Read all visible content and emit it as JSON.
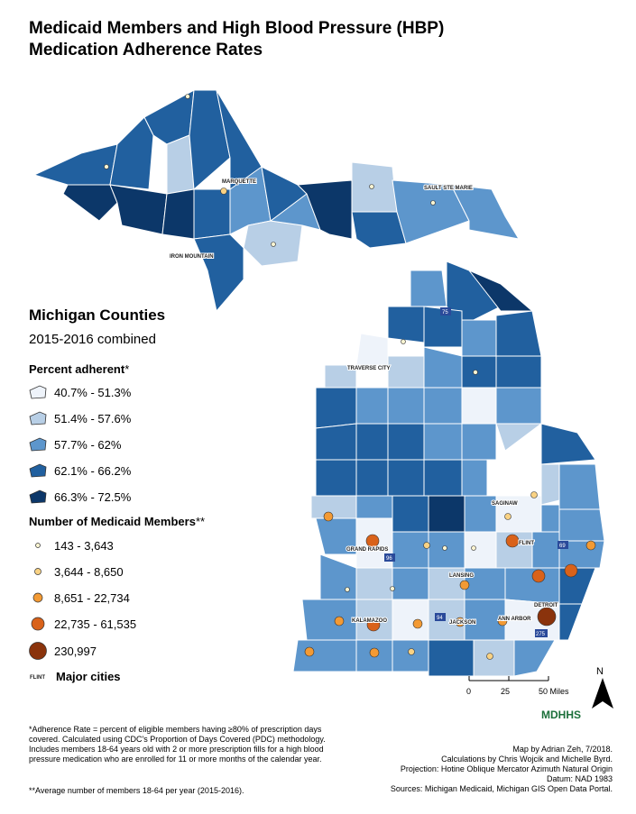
{
  "title_lines": [
    "Medicaid Members and High Blood Pressure (HBP)",
    "Medication Adherence Rates"
  ],
  "legend": {
    "heading": "Michigan Counties",
    "subheading": "2015-2016 combined",
    "adherence_title": "Percent adherent",
    "adherence_classes": [
      {
        "label": "40.7% - 51.3%",
        "color": "#eef3fa"
      },
      {
        "label": "51.4% - 57.6%",
        "color": "#b8cfe6"
      },
      {
        "label": "57.7% - 62%",
        "color": "#5d96cc"
      },
      {
        "label": "62.1% - 66.2%",
        "color": "#21609f"
      },
      {
        "label": "66.3% - 72.5%",
        "color": "#0c3769"
      }
    ],
    "members_title": "Number of Medicaid Members",
    "members_classes": [
      {
        "label": "143 - 3,643",
        "color": "#fdf5d2"
      },
      {
        "label": "3,644 - 8,650",
        "color": "#f9d283"
      },
      {
        "label": "8,651 - 22,734",
        "color": "#f39a34"
      },
      {
        "label": "22,735 - 61,535",
        "color": "#d9621a"
      },
      {
        "label": "230,997",
        "color": "#8a330c"
      }
    ],
    "cities_swatch": "FLINT",
    "cities_label": "Major cities"
  },
  "cities": [
    "MARQUETTE",
    "SAULT STE MARIE",
    "IRON MOUNTAIN",
    "TRAVERSE CITY",
    "SAGINAW",
    "FLINT",
    "GRAND RAPIDS",
    "LANSING",
    "KALAMAZOO",
    "JACKSON",
    "ANN ARBOR",
    "DETROIT"
  ],
  "highways": [
    "75",
    "96",
    "69",
    "94",
    "275"
  ],
  "scale": {
    "ticks": [
      "0",
      "25",
      "50 Miles"
    ]
  },
  "north": "N",
  "logo": "MDHHS",
  "footnotes": {
    "adherence": "*Adherence Rate = percent of eligible members having ≥80% of prescription days covered. Calculated using CDC's Proportion of Days Covered (PDC) methodology. Includes members 18-64 years old with 2 or more prescription fills for a high blood pressure medication who are enrolled for 11 or more months of the calendar year.",
    "average": "**Average number of members 18-64 per year (2015-2016).",
    "credits": [
      "Map by Adrian Zeh, 7/2018.",
      "Calculations by Chris Wojcik and Michelle Byrd.",
      "Projection: Hotine Oblique Mercator Azimuth Natural Origin",
      "Datum: NAD 1983",
      "Sources: Michigan Medicaid, Michigan GIS Open Data Portal."
    ]
  }
}
